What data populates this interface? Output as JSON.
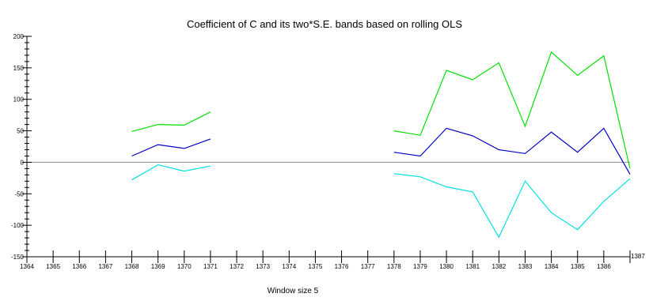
{
  "chart_data": {
    "type": "line",
    "title": "Coefficient of C and its two*S.E. bands based on rolling OLS",
    "xlabel": "Window size 5",
    "ylabel": "",
    "x": [
      1364,
      1365,
      1366,
      1367,
      1368,
      1369,
      1370,
      1371,
      1372,
      1373,
      1374,
      1375,
      1376,
      1377,
      1378,
      1379,
      1380,
      1381,
      1382,
      1383,
      1384,
      1385,
      1386,
      1387
    ],
    "x_tick_labels": [
      "1364",
      "1365",
      "1366",
      "1367",
      "1368",
      "1369",
      "1370",
      "1371",
      "1372",
      "1373",
      "1374",
      "1375",
      "1376",
      "1377",
      "1378",
      "1379",
      "1380",
      "1381",
      "1382",
      "1383",
      "1384",
      "1385",
      "1386",
      "1387"
    ],
    "xlim": [
      1364,
      1387
    ],
    "ylim": [
      -150,
      200
    ],
    "y_ticks": [
      -150,
      -100,
      -50,
      0,
      50,
      100,
      150,
      200
    ],
    "y_tick_labels": [
      "-150",
      "-100",
      "-50",
      "0",
      "50",
      "100",
      "150",
      "200"
    ],
    "grid": false,
    "zero_line": true,
    "series": [
      {
        "name": "",
        "color": "#00e000",
        "segments": [
          [
            [
              1368,
              49
            ],
            [
              1369,
              60
            ],
            [
              1370,
              59
            ],
            [
              1371,
              80
            ]
          ],
          [
            [
              1378,
              50
            ],
            [
              1379,
              43
            ],
            [
              1380,
              146
            ],
            [
              1381,
              131
            ],
            [
              1382,
              158
            ],
            [
              1383,
              57
            ],
            [
              1384,
              175
            ],
            [
              1385,
              138
            ],
            [
              1386,
              169
            ],
            [
              1387,
              -10
            ]
          ]
        ]
      },
      {
        "name": "",
        "color": "#0000c8",
        "segments": [
          [
            [
              1368,
              10
            ],
            [
              1369,
              28
            ],
            [
              1370,
              22
            ],
            [
              1371,
              37
            ]
          ],
          [
            [
              1378,
              16
            ],
            [
              1379,
              10
            ],
            [
              1380,
              54
            ],
            [
              1381,
              42
            ],
            [
              1382,
              20
            ],
            [
              1383,
              14
            ],
            [
              1384,
              48
            ],
            [
              1385,
              16
            ],
            [
              1386,
              54
            ],
            [
              1387,
              -19
            ]
          ]
        ]
      },
      {
        "name": "",
        "color": "#00e0e0",
        "segments": [
          [
            [
              1368,
              -28
            ],
            [
              1369,
              -4
            ],
            [
              1370,
              -14
            ],
            [
              1371,
              -6
            ]
          ],
          [
            [
              1378,
              -18
            ],
            [
              1379,
              -23
            ],
            [
              1380,
              -39
            ],
            [
              1381,
              -47
            ],
            [
              1382,
              -119
            ],
            [
              1383,
              -30
            ],
            [
              1384,
              -80
            ],
            [
              1385,
              -107
            ],
            [
              1386,
              -62
            ],
            [
              1387,
              -26
            ]
          ]
        ]
      }
    ]
  }
}
